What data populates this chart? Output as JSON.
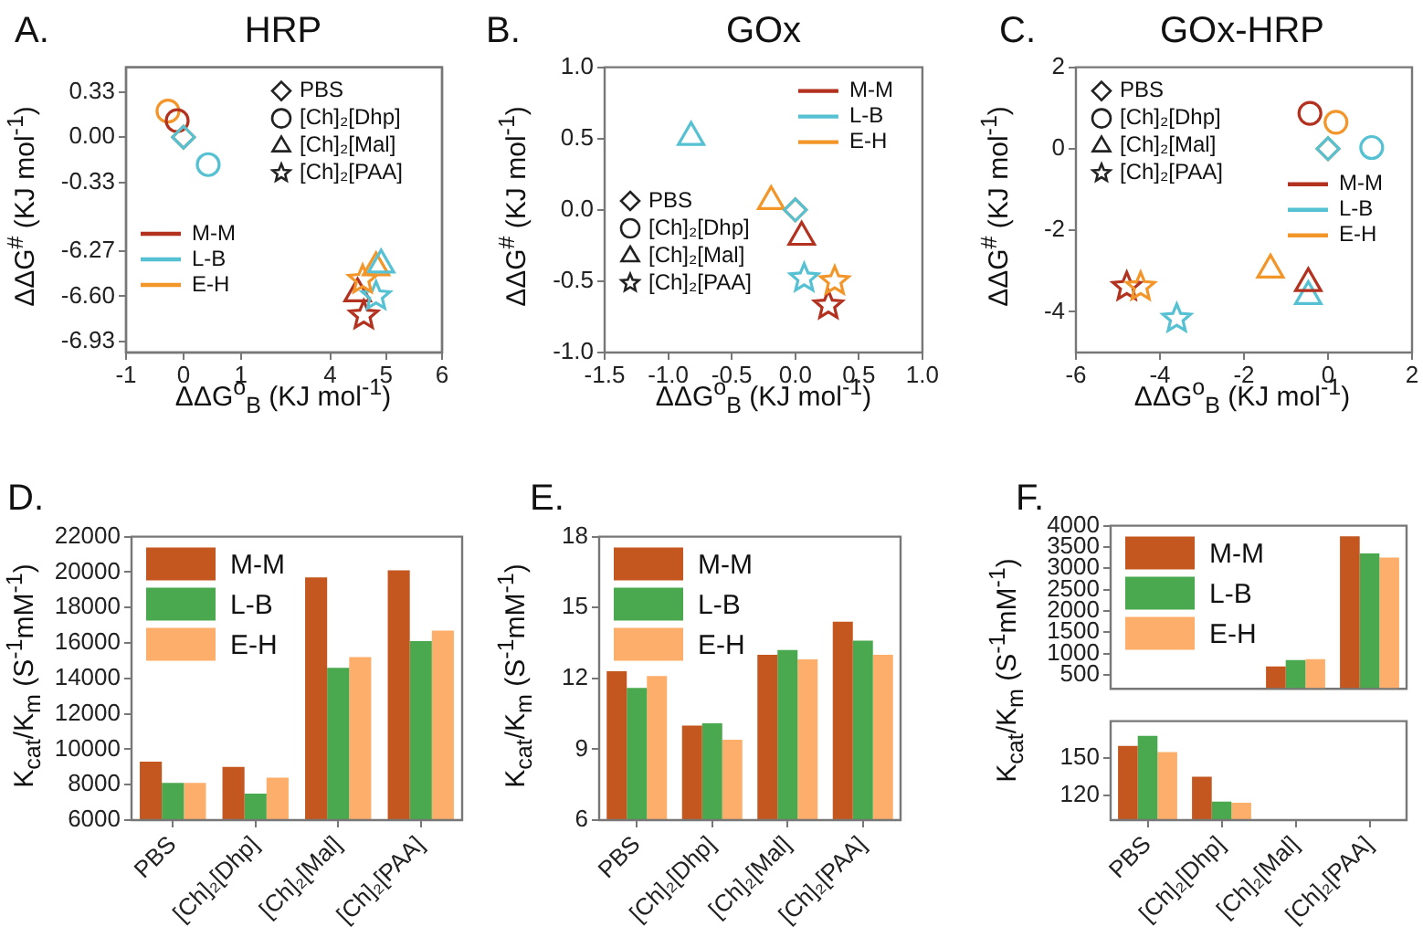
{
  "chart_data": [
    {
      "type": "scatter",
      "title": "HRP",
      "annotations": [
        "A."
      ],
      "xlabel": "ΔΔG$^{o}$$_{B}$ (KJ mol$^{-1}$)",
      "ylabel": "ΔΔG$^{#}$ (KJ mol$^{-1}$)",
      "legend": "top left",
      "xlim": [
        -1,
        4.5
      ],
      "xticks": [
        -1,
        0,
        1
      ],
      "ylim": [
        -1.57,
        0.51
      ],
      "yticks": [
        0.33,
        {
          "value": 0,
          "label": "0.00"
        },
        -0.33
      ],
      "series": [
        {
          "name": "PBS",
          "marker": "diamond",
          "color": "#222222",
          "values": [
            null
          ]
        },
        {
          "name": "[Ch]₂[Dhp]",
          "marker": "circle",
          "color": "#222222",
          "values": [
            null
          ]
        },
        {
          "name": "[Ch]₂[Mal]",
          "marker": "triangle",
          "color": "#222222",
          "values": [
            null
          ]
        },
        {
          "name": "[Ch]₂[PAA]",
          "marker": "star",
          "color": "#222222",
          "values": [
            null
          ]
        },
        {
          "name": "M-M",
          "type": "line",
          "color": "#b3321f",
          "values": [
            null
          ]
        },
        {
          "name": "L-B",
          "type": "line",
          "color": "#55c1d2",
          "values": [
            null
          ]
        },
        {
          "name": "E-H",
          "type": "line",
          "color": "#f3962a",
          "values": [
            null
          ]
        },
        {
          "marker": "diamond",
          "color": "#55c1d2",
          "x": [
            0
          ],
          "values": [
            0
          ]
        },
        {
          "marker": "diamond",
          "color": "#f3962a",
          "x": [
            0
          ],
          "values": [
            0
          ]
        },
        {
          "marker": "circle",
          "color": "#b3321f",
          "x": [
            -0.11
          ],
          "values": [
            0.12
          ]
        },
        {
          "marker": "circle",
          "color": "#55c1d2",
          "x": [
            0.43
          ],
          "values": [
            -0.2
          ]
        },
        {
          "marker": "circle",
          "color": "#f3962a",
          "x": [
            -0.27
          ],
          "values": [
            0.19
          ]
        }
      ]
    },
    {
      "type": "scatter",
      "xlim": [
        0.35,
        6
      ],
      "xticks": [
        4,
        5,
        6
      ],
      "ylim": [
        -7.01,
        -4.93
      ],
      "yticks": [
        -6.27,
        {
          "value": -6.6,
          "label": "-6.60"
        },
        -6.93
      ],
      "series": [
        {
          "marker": "triangle",
          "color": "#b3321f",
          "x": [
            4.49
          ],
          "values": [
            -6.58
          ]
        },
        {
          "marker": "triangle",
          "color": "#55c1d2",
          "x": [
            4.91
          ],
          "values": [
            -6.37
          ]
        },
        {
          "marker": "triangle",
          "color": "#f3962a",
          "x": [
            4.82
          ],
          "values": [
            -6.39
          ]
        },
        {
          "marker": "star",
          "color": "#b3321f",
          "x": [
            4.6
          ],
          "values": [
            -6.74
          ]
        },
        {
          "marker": "star",
          "color": "#55c1d2",
          "x": [
            4.82
          ],
          "values": [
            -6.6
          ]
        },
        {
          "marker": "star",
          "color": "#f3962a",
          "x": [
            4.58
          ],
          "values": [
            -6.48
          ]
        }
      ]
    },
    {
      "type": "scatter",
      "title": "GOx",
      "annotations": [
        "B."
      ],
      "xlabel": "ΔΔG$^{o}$$_{B}$ (KJ mol$^{-1}$)",
      "ylabel": "ΔΔG$^{#}$ (KJ mol$^{-1}$)",
      "legend": "top right",
      "xlim": [
        -1.5,
        1
      ],
      "xticks": [
        -1.5,
        {
          "value": -1,
          "label": "-1.0"
        },
        -0.5,
        {
          "value": 0,
          "label": "0.0"
        },
        0.5,
        {
          "value": 1,
          "label": "1.0"
        }
      ],
      "ylim": [
        -1,
        1
      ],
      "yticks": [
        {
          "value": -1,
          "label": "-1.0"
        },
        -0.5,
        {
          "value": 0,
          "label": "0.0"
        },
        0.5,
        {
          "value": 1,
          "label": "1.0"
        }
      ],
      "series": [
        {
          "name": "PBS",
          "marker": "diamond",
          "color": "#222222",
          "values": [
            null
          ]
        },
        {
          "name": "[Ch]₂[Dhp]",
          "marker": "circle",
          "color": "#222222",
          "values": [
            null
          ]
        },
        {
          "name": "[Ch]₂[Mal]",
          "marker": "triangle",
          "color": "#222222",
          "values": [
            null
          ]
        },
        {
          "name": "[Ch]₂[PAA]",
          "marker": "star",
          "color": "#222222",
          "values": [
            null
          ]
        },
        {
          "name": "M-M",
          "type": "line",
          "color": "#b3321f",
          "values": [
            null
          ]
        },
        {
          "name": "L-B",
          "type": "line",
          "color": "#55c1d2",
          "values": [
            null
          ]
        },
        {
          "name": "E-H",
          "type": "line",
          "color": "#f3962a",
          "values": [
            null
          ]
        },
        {
          "marker": "diamond",
          "color": "#55c1d2",
          "x": [
            0
          ],
          "values": [
            0
          ]
        },
        {
          "marker": "diamond",
          "color": "#f3962a",
          "x": [
            0
          ],
          "values": [
            0
          ]
        },
        {
          "marker": "triangle",
          "color": "#b3321f",
          "x": [
            0.05
          ],
          "values": [
            -0.19
          ]
        },
        {
          "marker": "triangle",
          "color": "#55c1d2",
          "x": [
            -0.82
          ],
          "values": [
            0.51
          ]
        },
        {
          "marker": "triangle",
          "color": "#f3962a",
          "x": [
            -0.19
          ],
          "values": [
            0.06
          ]
        },
        {
          "marker": "star",
          "color": "#b3321f",
          "x": [
            0.26
          ],
          "values": [
            -0.67
          ]
        },
        {
          "marker": "star",
          "color": "#55c1d2",
          "x": [
            0.07
          ],
          "values": [
            -0.48
          ]
        },
        {
          "marker": "star",
          "color": "#f3962a",
          "x": [
            0.31
          ],
          "values": [
            -0.5
          ]
        }
      ]
    },
    {
      "type": "scatter",
      "title": "GOx-HRP",
      "annotations": [
        "C."
      ],
      "xlabel": "ΔΔG$^{o}$$_{B}$ (KJ mol$^{-1}$)",
      "ylabel": "ΔΔG$^{#}$ (KJ mol$^{-1}$)",
      "legend": "right",
      "xlim": [
        -6,
        2
      ],
      "xticks": [
        -6,
        -4,
        -2,
        0,
        2
      ],
      "ylim": [
        -5,
        2
      ],
      "yticks": [
        -4,
        -2,
        0,
        2
      ],
      "series": [
        {
          "name": "PBS",
          "marker": "diamond",
          "color": "#222222",
          "values": [
            null
          ]
        },
        {
          "name": "[Ch]₂[Dhp]",
          "marker": "circle",
          "color": "#222222",
          "values": [
            null
          ]
        },
        {
          "name": "[Ch]₂[Mal]",
          "marker": "triangle",
          "color": "#222222",
          "values": [
            null
          ]
        },
        {
          "name": "[Ch]₂[PAA]",
          "marker": "star",
          "color": "#222222",
          "values": [
            null
          ]
        },
        {
          "name": "M-M",
          "type": "line",
          "color": "#b3321f",
          "values": [
            null
          ]
        },
        {
          "name": "L-B",
          "type": "line",
          "color": "#55c1d2",
          "values": [
            null
          ]
        },
        {
          "name": "E-H",
          "type": "line",
          "color": "#f3962a",
          "values": [
            null
          ]
        },
        {
          "marker": "diamond",
          "color": "#55c1d2",
          "x": [
            0
          ],
          "values": [
            0
          ]
        },
        {
          "marker": "diamond",
          "color": "#f3962a",
          "x": [
            0
          ],
          "values": [
            0
          ]
        },
        {
          "marker": "circle",
          "color": "#b3321f",
          "x": [
            -0.43
          ],
          "values": [
            0.87
          ]
        },
        {
          "marker": "circle",
          "color": "#55c1d2",
          "x": [
            1.04
          ],
          "values": [
            0.03
          ]
        },
        {
          "marker": "circle",
          "color": "#f3962a",
          "x": [
            0.19
          ],
          "values": [
            0.65
          ]
        },
        {
          "marker": "triangle",
          "color": "#b3321f",
          "x": [
            -0.47
          ],
          "values": [
            -3.3
          ]
        },
        {
          "marker": "triangle",
          "color": "#55c1d2",
          "x": [
            -0.47
          ],
          "values": [
            -3.62
          ]
        },
        {
          "marker": "triangle",
          "color": "#f3962a",
          "x": [
            -1.37
          ],
          "values": [
            -2.97
          ]
        },
        {
          "marker": "star",
          "color": "#b3321f",
          "x": [
            -4.79
          ],
          "values": [
            -3.39
          ]
        },
        {
          "marker": "star",
          "color": "#55c1d2",
          "x": [
            -3.6
          ],
          "values": [
            -4.17
          ]
        },
        {
          "marker": "star",
          "color": "#f3962a",
          "x": [
            -4.46
          ],
          "values": [
            -3.39
          ]
        }
      ]
    },
    {
      "type": "bar",
      "annotations": [
        "D."
      ],
      "ylabel": "K$_{cat}$/K$_{m}$ (S$^{-1}$mM$^{-1}$)",
      "categories": [
        "PBS",
        "[Ch]₂[Dhp]",
        "[Ch]₂[Mal]",
        "[Ch]₂[PAA]"
      ],
      "legend": "top left",
      "ylim": [
        6000,
        22000
      ],
      "yticks": [
        6000,
        8000,
        10000,
        12000,
        14000,
        16000,
        18000,
        20000,
        22000
      ],
      "series": [
        {
          "name": "M-M",
          "color": "#c4561f",
          "values": [
            9300,
            9000,
            19700,
            20100
          ]
        },
        {
          "name": "L-B",
          "color": "#4aa84f",
          "values": [
            8100,
            7500,
            14600,
            16100
          ]
        },
        {
          "name": "E-H",
          "color": "#fcae6a",
          "values": [
            8100,
            8400,
            15200,
            16700
          ]
        }
      ]
    },
    {
      "type": "bar",
      "annotations": [
        "E."
      ],
      "ylabel": "K$_{cat}$/K$_{m}$ (S$^{-1}$mM$^{-1}$)",
      "categories": [
        "PBS",
        "[Ch]₂[Dhp]",
        "[Ch]₂[Mal]",
        "[Ch]₂[PAA]"
      ],
      "legend": "top left",
      "ylim": [
        6,
        18
      ],
      "yticks": [
        6,
        9,
        12,
        15,
        18
      ],
      "series": [
        {
          "name": "M-M",
          "color": "#c4561f",
          "values": [
            12.3,
            10.0,
            13.0,
            14.4
          ]
        },
        {
          "name": "L-B",
          "color": "#4aa84f",
          "values": [
            11.6,
            10.1,
            13.2,
            13.6
          ]
        },
        {
          "name": "E-H",
          "color": "#fcae6a",
          "values": [
            12.1,
            9.4,
            12.8,
            13.0
          ]
        }
      ]
    },
    {
      "type": "bar",
      "annotations": [
        "F."
      ],
      "ylabel": "K$_{cat}$/K$_{m}$ (S$^{-1}$mM$^{-1}$)",
      "tick_labels": "y",
      "legend": "top left",
      "ylim": [
        170,
        4000
      ],
      "yticks": [
        500,
        1000,
        1500,
        2000,
        2500,
        3000,
        3500,
        4000
      ],
      "series": [
        {
          "name": "M-M",
          "color": "#c4561f",
          "values": [
            null,
            null,
            700,
            3750
          ]
        },
        {
          "name": "L-B",
          "color": "#4aa84f",
          "values": [
            null,
            null,
            850,
            3350
          ]
        },
        {
          "name": "E-H",
          "color": "#fcae6a",
          "values": [
            null,
            null,
            870,
            3250
          ]
        }
      ]
    },
    {
      "type": "bar",
      "categories": [
        "PBS",
        "[Ch]₂[Dhp]",
        "[Ch]₂[Mal]",
        "[Ch]₂[PAA]"
      ],
      "ylim": [
        100,
        180
      ],
      "yticks": [
        120,
        150
      ],
      "series": [
        {
          "color": "#c4561f",
          "values": [
            160,
            135,
            null,
            null
          ]
        },
        {
          "color": "#4aa84f",
          "values": [
            168,
            115,
            null,
            null
          ]
        },
        {
          "color": "#fcae6a",
          "values": [
            155,
            114,
            null,
            null
          ]
        }
      ]
    }
  ]
}
